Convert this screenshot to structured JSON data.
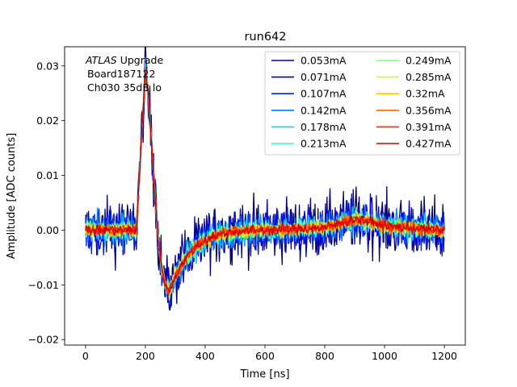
{
  "chart_data": {
    "type": "line",
    "title": "run642",
    "xlabel": "Time [ns]",
    "ylabel": "Amplitude [ADC counts]",
    "xlim": [
      -70,
      1270
    ],
    "ylim": [
      -0.021,
      0.0335
    ],
    "xticks": [
      0,
      200,
      400,
      600,
      800,
      1000,
      1200
    ],
    "xtick_labels": [
      "0",
      "200",
      "400",
      "600",
      "800",
      "1000",
      "1200"
    ],
    "yticks": [
      -0.02,
      -0.01,
      0.0,
      0.01,
      0.02,
      0.03
    ],
    "ytick_labels": [
      "−0.02",
      "−0.01",
      "0.00",
      "0.01",
      "0.02",
      "0.03"
    ],
    "grid": false,
    "legend_placement": "top-right",
    "legend_columns": 2,
    "annotation": {
      "italic": "ATLAS",
      "rest": " Upgrade",
      "line2": "Board187122",
      "line3": "Ch030 35dB lo"
    },
    "pulse_shape": {
      "x": [
        0,
        170,
        185,
        200,
        210,
        225,
        240,
        255,
        270,
        280,
        300,
        330,
        370,
        420,
        500,
        600,
        700,
        800,
        850,
        900,
        950,
        1000,
        1100,
        1200
      ],
      "y": [
        0.0,
        0.0,
        0.015,
        0.029,
        0.025,
        0.012,
        0.0,
        -0.007,
        -0.0105,
        -0.0112,
        -0.0085,
        -0.0055,
        -0.003,
        -0.0012,
        -0.0002,
        0.0,
        0.0002,
        0.0005,
        0.0012,
        0.0021,
        0.0015,
        0.0008,
        0.0003,
        0.0
      ]
    },
    "series": [
      {
        "name": "0.053mA",
        "color": "#000080",
        "noise": 0.004
      },
      {
        "name": "0.071mA",
        "color": "#0000d1",
        "noise": 0.0032
      },
      {
        "name": "0.107mA",
        "color": "#0020ff",
        "noise": 0.0026
      },
      {
        "name": "0.142mA",
        "color": "#0080ff",
        "noise": 0.002
      },
      {
        "name": "0.178mA",
        "color": "#00d4ff",
        "noise": 0.0016
      },
      {
        "name": "0.213mA",
        "color": "#29ffce",
        "noise": 0.0013
      },
      {
        "name": "0.249mA",
        "color": "#7dff7a",
        "noise": 0.0011
      },
      {
        "name": "0.285mA",
        "color": "#ceff29",
        "noise": 0.001
      },
      {
        "name": "0.32mA",
        "color": "#ffc400",
        "noise": 0.0009
      },
      {
        "name": "0.356mA",
        "color": "#ff6800",
        "noise": 0.0008
      },
      {
        "name": "0.391mA",
        "color": "#ff2500",
        "noise": 0.0007
      },
      {
        "name": "0.427mA",
        "color": "#d40000",
        "noise": 0.0007
      }
    ]
  }
}
